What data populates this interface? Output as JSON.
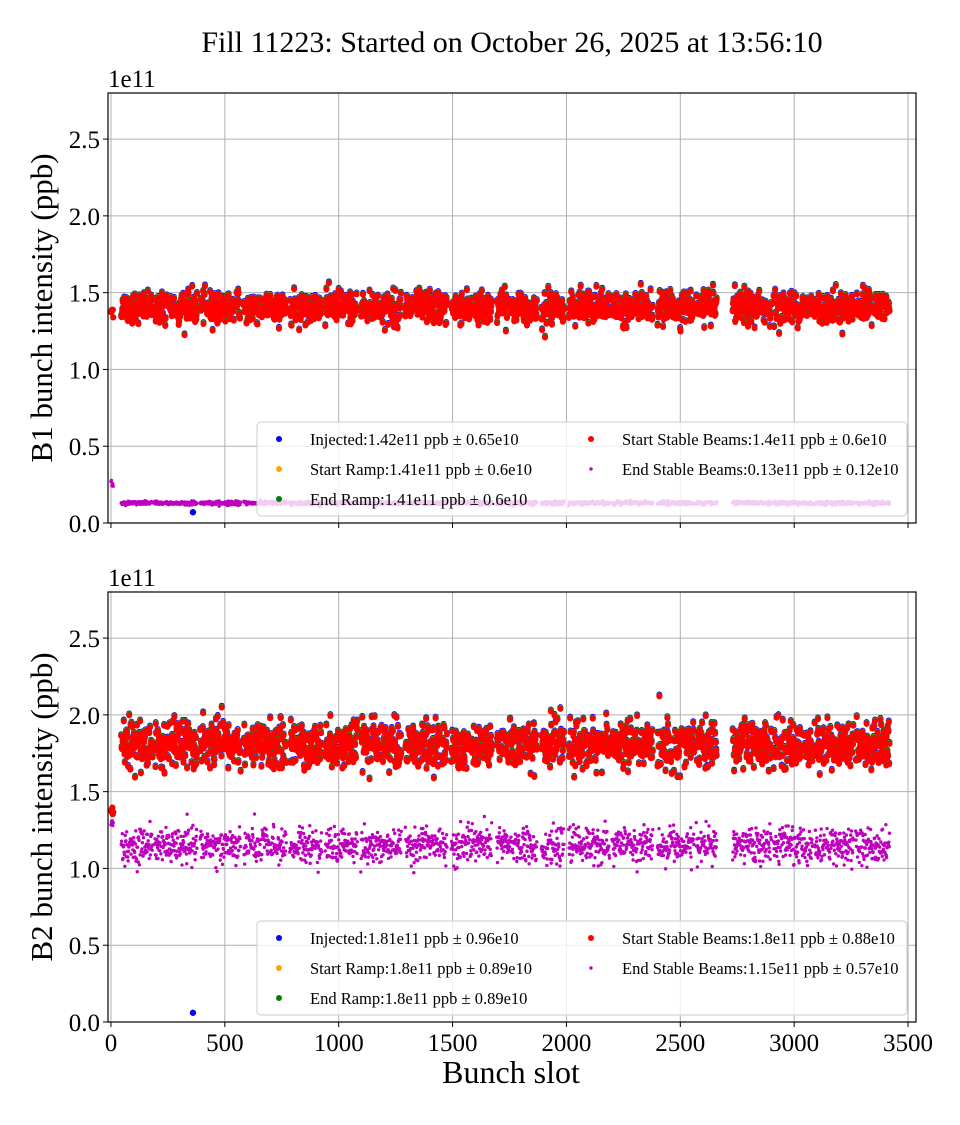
{
  "chart_data": [
    {
      "type": "scatter",
      "title": "Fill 11223: Started on October 26, 2025 at 13:56:10",
      "ylabel": "B1 bunch intensity (ppb)",
      "y_offset_label": "1e11",
      "xlabel": "",
      "xlim": [
        -13,
        3535
      ],
      "ylim": [
        0,
        2.8
      ],
      "yticks": [
        "0.0",
        "0.5",
        "1.0",
        "1.5",
        "2.0",
        "2.5"
      ],
      "xticks": [
        0,
        500,
        1000,
        1500,
        2000,
        2500,
        3000,
        3500
      ],
      "xtick_labels_shown": false,
      "grid": true,
      "legend_placement": "lower right",
      "unit_scale": "1e11 ppb",
      "pilot_bunch": {
        "slot_range": [
          0,
          10
        ],
        "injected": 1.38,
        "end_stable_beams": 0.25
      },
      "outliers": [
        {
          "series": "Injected",
          "slot": 360,
          "value": 0.07
        }
      ],
      "trains": [
        [
          45,
          183
        ],
        [
          192,
          379
        ],
        [
          392,
          571
        ],
        [
          584,
          771
        ],
        [
          785,
          927
        ],
        [
          941,
          1083
        ],
        [
          1097,
          1275
        ],
        [
          1293,
          1476
        ],
        [
          1494,
          1672
        ],
        [
          1694,
          1870
        ],
        [
          1890,
          1990
        ],
        [
          2010,
          2190
        ],
        [
          2200,
          2380
        ],
        [
          2400,
          2560
        ],
        [
          2570,
          2660
        ],
        [
          2730,
          2900
        ],
        [
          2910,
          3080
        ],
        [
          3090,
          3260
        ],
        [
          3270,
          3420
        ]
      ],
      "series": [
        {
          "name": "Injected",
          "legend": "Injected:1.42e11 ppb ± 0.65e10",
          "mean": 1.42,
          "std": 0.065,
          "color": "#0000ff"
        },
        {
          "name": "Start Ramp",
          "legend": "Start Ramp:1.41e11 ppb ± 0.6e10",
          "mean": 1.41,
          "std": 0.06,
          "color": "#ffa500"
        },
        {
          "name": "End Ramp",
          "legend": "End Ramp:1.41e11 ppb ± 0.6e10",
          "mean": 1.41,
          "std": 0.06,
          "color": "#008000"
        },
        {
          "name": "Start Stable Beams",
          "legend": "Start Stable Beams:1.4e11 ppb ± 0.6e10",
          "mean": 1.4,
          "std": 0.06,
          "color": "#ff0000"
        },
        {
          "name": "End Stable Beams",
          "legend": "End Stable Beams:0.13e11 ppb ± 0.12e10",
          "mean": 0.13,
          "std": 0.012,
          "color": "#bf00bf"
        }
      ]
    },
    {
      "type": "scatter",
      "ylabel": "B2 bunch intensity (ppb)",
      "y_offset_label": "1e11",
      "xlabel": "Bunch slot",
      "xlim": [
        -13,
        3535
      ],
      "ylim": [
        0,
        2.8
      ],
      "yticks": [
        "0.0",
        "0.5",
        "1.0",
        "1.5",
        "2.0",
        "2.5"
      ],
      "xticks": [
        0,
        500,
        1000,
        1500,
        2000,
        2500,
        3000,
        3500
      ],
      "xtick_labels_shown": true,
      "grid": true,
      "legend_placement": "lower right",
      "unit_scale": "1e11 ppb",
      "pilot_bunch": {
        "slot_range": [
          0,
          10
        ],
        "injected": 1.37,
        "end_stable_beams": 1.3
      },
      "outliers": [
        {
          "series": "Injected",
          "slot": 360,
          "value": 0.06
        }
      ],
      "trains": [
        [
          45,
          183
        ],
        [
          192,
          379
        ],
        [
          392,
          571
        ],
        [
          584,
          771
        ],
        [
          785,
          927
        ],
        [
          941,
          1083
        ],
        [
          1097,
          1275
        ],
        [
          1293,
          1476
        ],
        [
          1494,
          1672
        ],
        [
          1694,
          1870
        ],
        [
          1890,
          1990
        ],
        [
          2010,
          2190
        ],
        [
          2200,
          2380
        ],
        [
          2400,
          2560
        ],
        [
          2570,
          2660
        ],
        [
          2730,
          2900
        ],
        [
          2910,
          3080
        ],
        [
          3090,
          3260
        ],
        [
          3270,
          3420
        ]
      ],
      "series": [
        {
          "name": "Injected",
          "legend": "Injected:1.81e11 ppb ± 0.96e10",
          "mean": 1.81,
          "std": 0.096,
          "color": "#0000ff"
        },
        {
          "name": "Start Ramp",
          "legend": "Start Ramp:1.8e11 ppb ± 0.89e10",
          "mean": 1.8,
          "std": 0.089,
          "color": "#ffa500"
        },
        {
          "name": "End Ramp",
          "legend": "End Ramp:1.8e11 ppb ± 0.89e10",
          "mean": 1.8,
          "std": 0.089,
          "color": "#008000"
        },
        {
          "name": "Start Stable Beams",
          "legend": "Start Stable Beams:1.8e11 ppb ± 0.88e10",
          "mean": 1.8,
          "std": 0.088,
          "color": "#ff0000"
        },
        {
          "name": "End Stable Beams",
          "legend": "End Stable Beams:1.15e11 ppb ± 0.57e10",
          "mean": 1.15,
          "std": 0.057,
          "color": "#bf00bf"
        }
      ]
    }
  ]
}
